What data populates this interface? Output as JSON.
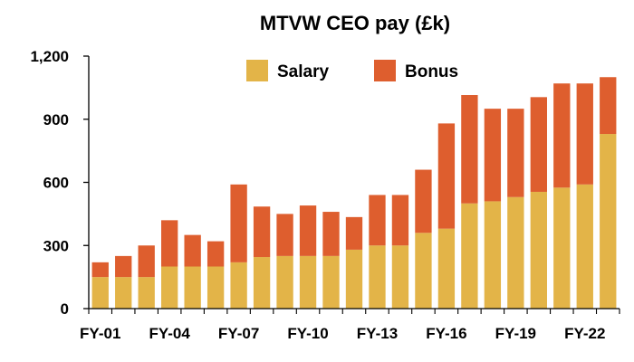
{
  "chart_data": {
    "type": "bar",
    "stacked": true,
    "title": "MTVW CEO pay (£k)",
    "xlabel": "",
    "ylabel": "",
    "ylim": [
      0,
      1200
    ],
    "yticks": [
      0,
      300,
      600,
      900,
      1200
    ],
    "ytick_labels": [
      "0",
      "300",
      "600",
      "900",
      "1,200"
    ],
    "categories": [
      "FY-01",
      "FY-02",
      "FY-03",
      "FY-04",
      "FY-05",
      "FY-06",
      "FY-07",
      "FY-08",
      "FY-09",
      "FY-10",
      "FY-11",
      "FY-12",
      "FY-13",
      "FY-14",
      "FY-15",
      "FY-16",
      "FY-17",
      "FY-18",
      "FY-19",
      "FY-20",
      "FY-21",
      "FY-22",
      "FY-23"
    ],
    "xtick_labels": [
      "FY-01",
      "FY-04",
      "FY-07",
      "FY-10",
      "FY-13",
      "FY-16",
      "FY-19",
      "FY-22"
    ],
    "series": [
      {
        "name": "Salary",
        "color": "#E3B448",
        "values": [
          150,
          150,
          150,
          200,
          200,
          200,
          220,
          245,
          250,
          250,
          250,
          280,
          300,
          300,
          360,
          380,
          500,
          510,
          530,
          555,
          575,
          590,
          830
        ]
      },
      {
        "name": "Bonus",
        "color": "#DE5E2E",
        "values": [
          70,
          100,
          150,
          220,
          150,
          120,
          370,
          240,
          200,
          240,
          210,
          155,
          240,
          240,
          300,
          500,
          515,
          440,
          420,
          450,
          495,
          480,
          270
        ]
      }
    ],
    "legend_position": "top",
    "grid": false
  }
}
